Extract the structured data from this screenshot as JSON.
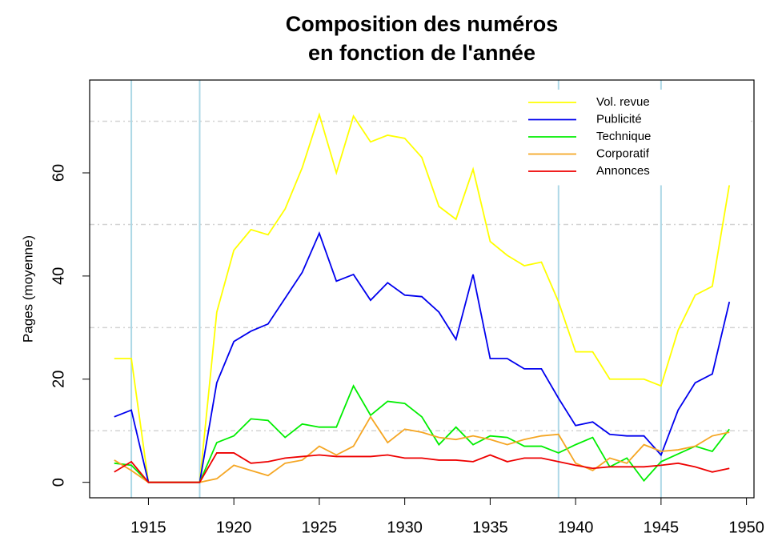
{
  "chart_data": {
    "type": "line",
    "title": [
      "Composition des numéros",
      "en fonction de l'année"
    ],
    "y_label": "Pages (moyenne)",
    "x": [
      1913,
      1914,
      1915,
      1916,
      1917,
      1918,
      1919,
      1920,
      1921,
      1922,
      1923,
      1924,
      1925,
      1926,
      1927,
      1928,
      1929,
      1930,
      1931,
      1932,
      1933,
      1934,
      1935,
      1936,
      1937,
      1938,
      1939,
      1940,
      1941,
      1942,
      1943,
      1944,
      1945,
      1946,
      1947,
      1948,
      1949
    ],
    "series": [
      {
        "name": "Vol. revue",
        "color": "#ffff00",
        "values": [
          24,
          24,
          0,
          0,
          0,
          0,
          33,
          45,
          49,
          48,
          53,
          61,
          71.3,
          60,
          71,
          66,
          67.3,
          66.7,
          63,
          53.5,
          51,
          60.7,
          46.7,
          44,
          42,
          42.7,
          35,
          25.3,
          25.3,
          20,
          20,
          20,
          18.7,
          29.5,
          36.3,
          38,
          57.7
        ]
      },
      {
        "name": "Publicité",
        "color": "#0000ee",
        "values": [
          12.7,
          14,
          0,
          0,
          0,
          0,
          19.3,
          27.3,
          29.3,
          30.7,
          35.7,
          40.7,
          48.3,
          39,
          40.3,
          35.3,
          38.7,
          36.3,
          36,
          33,
          27.7,
          40.3,
          24,
          24,
          22,
          22,
          16.3,
          11,
          11.7,
          9.3,
          9,
          9,
          5.3,
          14,
          19.3,
          21,
          35
        ]
      },
      {
        "name": "Technique",
        "color": "#00ee00",
        "values": [
          3.7,
          3.3,
          0,
          0,
          0,
          0,
          7.7,
          9,
          12.3,
          12,
          8.7,
          11.3,
          10.7,
          10.7,
          18.7,
          13,
          15.7,
          15.3,
          12.7,
          7.3,
          10.7,
          7.3,
          9,
          8.7,
          7,
          7,
          5.7,
          7.3,
          8.7,
          3,
          4.7,
          0.3,
          4,
          5.5,
          7,
          6,
          10.3
        ]
      },
      {
        "name": "Corporatif",
        "color": "#f5a623",
        "values": [
          4.3,
          2.3,
          0,
          0,
          0,
          0,
          0.7,
          3.3,
          2.3,
          1.3,
          3.7,
          4.3,
          7,
          5.3,
          7,
          12.7,
          7.7,
          10.3,
          9.7,
          8.7,
          8.3,
          9,
          8.3,
          7.3,
          8.3,
          9,
          9.3,
          3.7,
          2.3,
          4.7,
          3.7,
          7.3,
          6,
          6.3,
          7,
          9,
          9.7
        ]
      },
      {
        "name": "Annonces",
        "color": "#ee0000",
        "values": [
          2,
          4,
          0,
          0,
          0,
          0,
          5.7,
          5.7,
          3.7,
          4,
          4.7,
          5,
          5.3,
          5,
          5,
          5,
          5.3,
          4.7,
          4.7,
          4.3,
          4.3,
          4,
          5.3,
          4,
          4.7,
          4.7,
          4,
          3.3,
          2.7,
          3,
          3,
          3,
          3.3,
          3.7,
          3,
          2,
          2.7
        ]
      }
    ],
    "xlim": [
      1911.56,
      1950.44
    ],
    "xticks": [
      1915,
      1920,
      1925,
      1930,
      1935,
      1940,
      1945,
      1950
    ],
    "ylim": [
      -3,
      78
    ],
    "yticks": [
      0,
      20,
      40,
      60
    ],
    "vlines": [
      1914,
      1918,
      1939,
      1945
    ],
    "vline_color": "#add8e6",
    "hlines": [
      10,
      30,
      50,
      70
    ],
    "hline_color": "#d3d3d3",
    "legend": "top-right"
  }
}
